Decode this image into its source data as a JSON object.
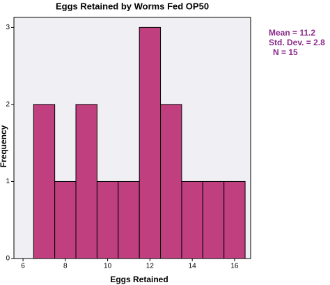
{
  "chart_data": {
    "type": "histogram",
    "title": "Eggs Retained  by Worms Fed OP50",
    "x_label": "Eggs Retained",
    "y_label": "Frequency",
    "bins": [
      6.5,
      7.5,
      8.5,
      9.5,
      10.5,
      11.5,
      12.5,
      13.5,
      14.5,
      15.5,
      16.5
    ],
    "counts": [
      2,
      1,
      2,
      1,
      1,
      3,
      2,
      1,
      1,
      1
    ],
    "color": "#c0407f",
    "xlim": [
      5.57,
      16.76
    ],
    "xticks": [
      6,
      8,
      10,
      12,
      14,
      16
    ],
    "ylim": [
      0,
      3.13
    ],
    "yticks": [
      0,
      1,
      2,
      3
    ],
    "annotations": [
      "Mean = 11.2",
      "Std. Dev. = 2.8",
      "N = 15"
    ]
  }
}
